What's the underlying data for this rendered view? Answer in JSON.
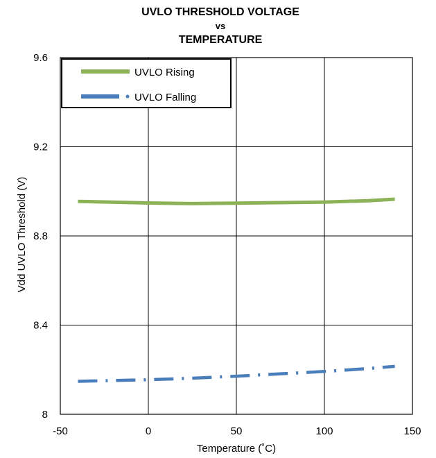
{
  "chart_data": {
    "type": "line",
    "title": [
      "UVLO THRESHOLD VOLTAGE",
      "vs",
      "TEMPERATURE"
    ],
    "xlabel": "Temperature (˚C)",
    "ylabel": "Vdd UVLO Threshold (V)",
    "xlim": [
      -50,
      150
    ],
    "ylim": [
      8,
      9.6
    ],
    "x_ticks": [
      -50,
      0,
      50,
      100,
      150
    ],
    "y_ticks": [
      8,
      8.4,
      8.8,
      9.2,
      9.6
    ],
    "y_tick_labels": [
      "8",
      "8.4",
      "8.8",
      "9.2",
      "9.6"
    ],
    "grid": true,
    "legend_position": "top-left",
    "series": [
      {
        "name": "UVLO Rising",
        "color": "#8cb357",
        "style": "solid",
        "x": [
          -40,
          0,
          25,
          50,
          100,
          125,
          140
        ],
        "y": [
          8.955,
          8.948,
          8.945,
          8.947,
          8.952,
          8.958,
          8.965
        ]
      },
      {
        "name": "UVLO Falling",
        "color": "#4a7ebb",
        "style": "dash-dot",
        "x": [
          -40,
          0,
          25,
          50,
          100,
          125,
          140
        ],
        "y": [
          8.148,
          8.155,
          8.162,
          8.171,
          8.192,
          8.205,
          8.215
        ]
      }
    ]
  }
}
